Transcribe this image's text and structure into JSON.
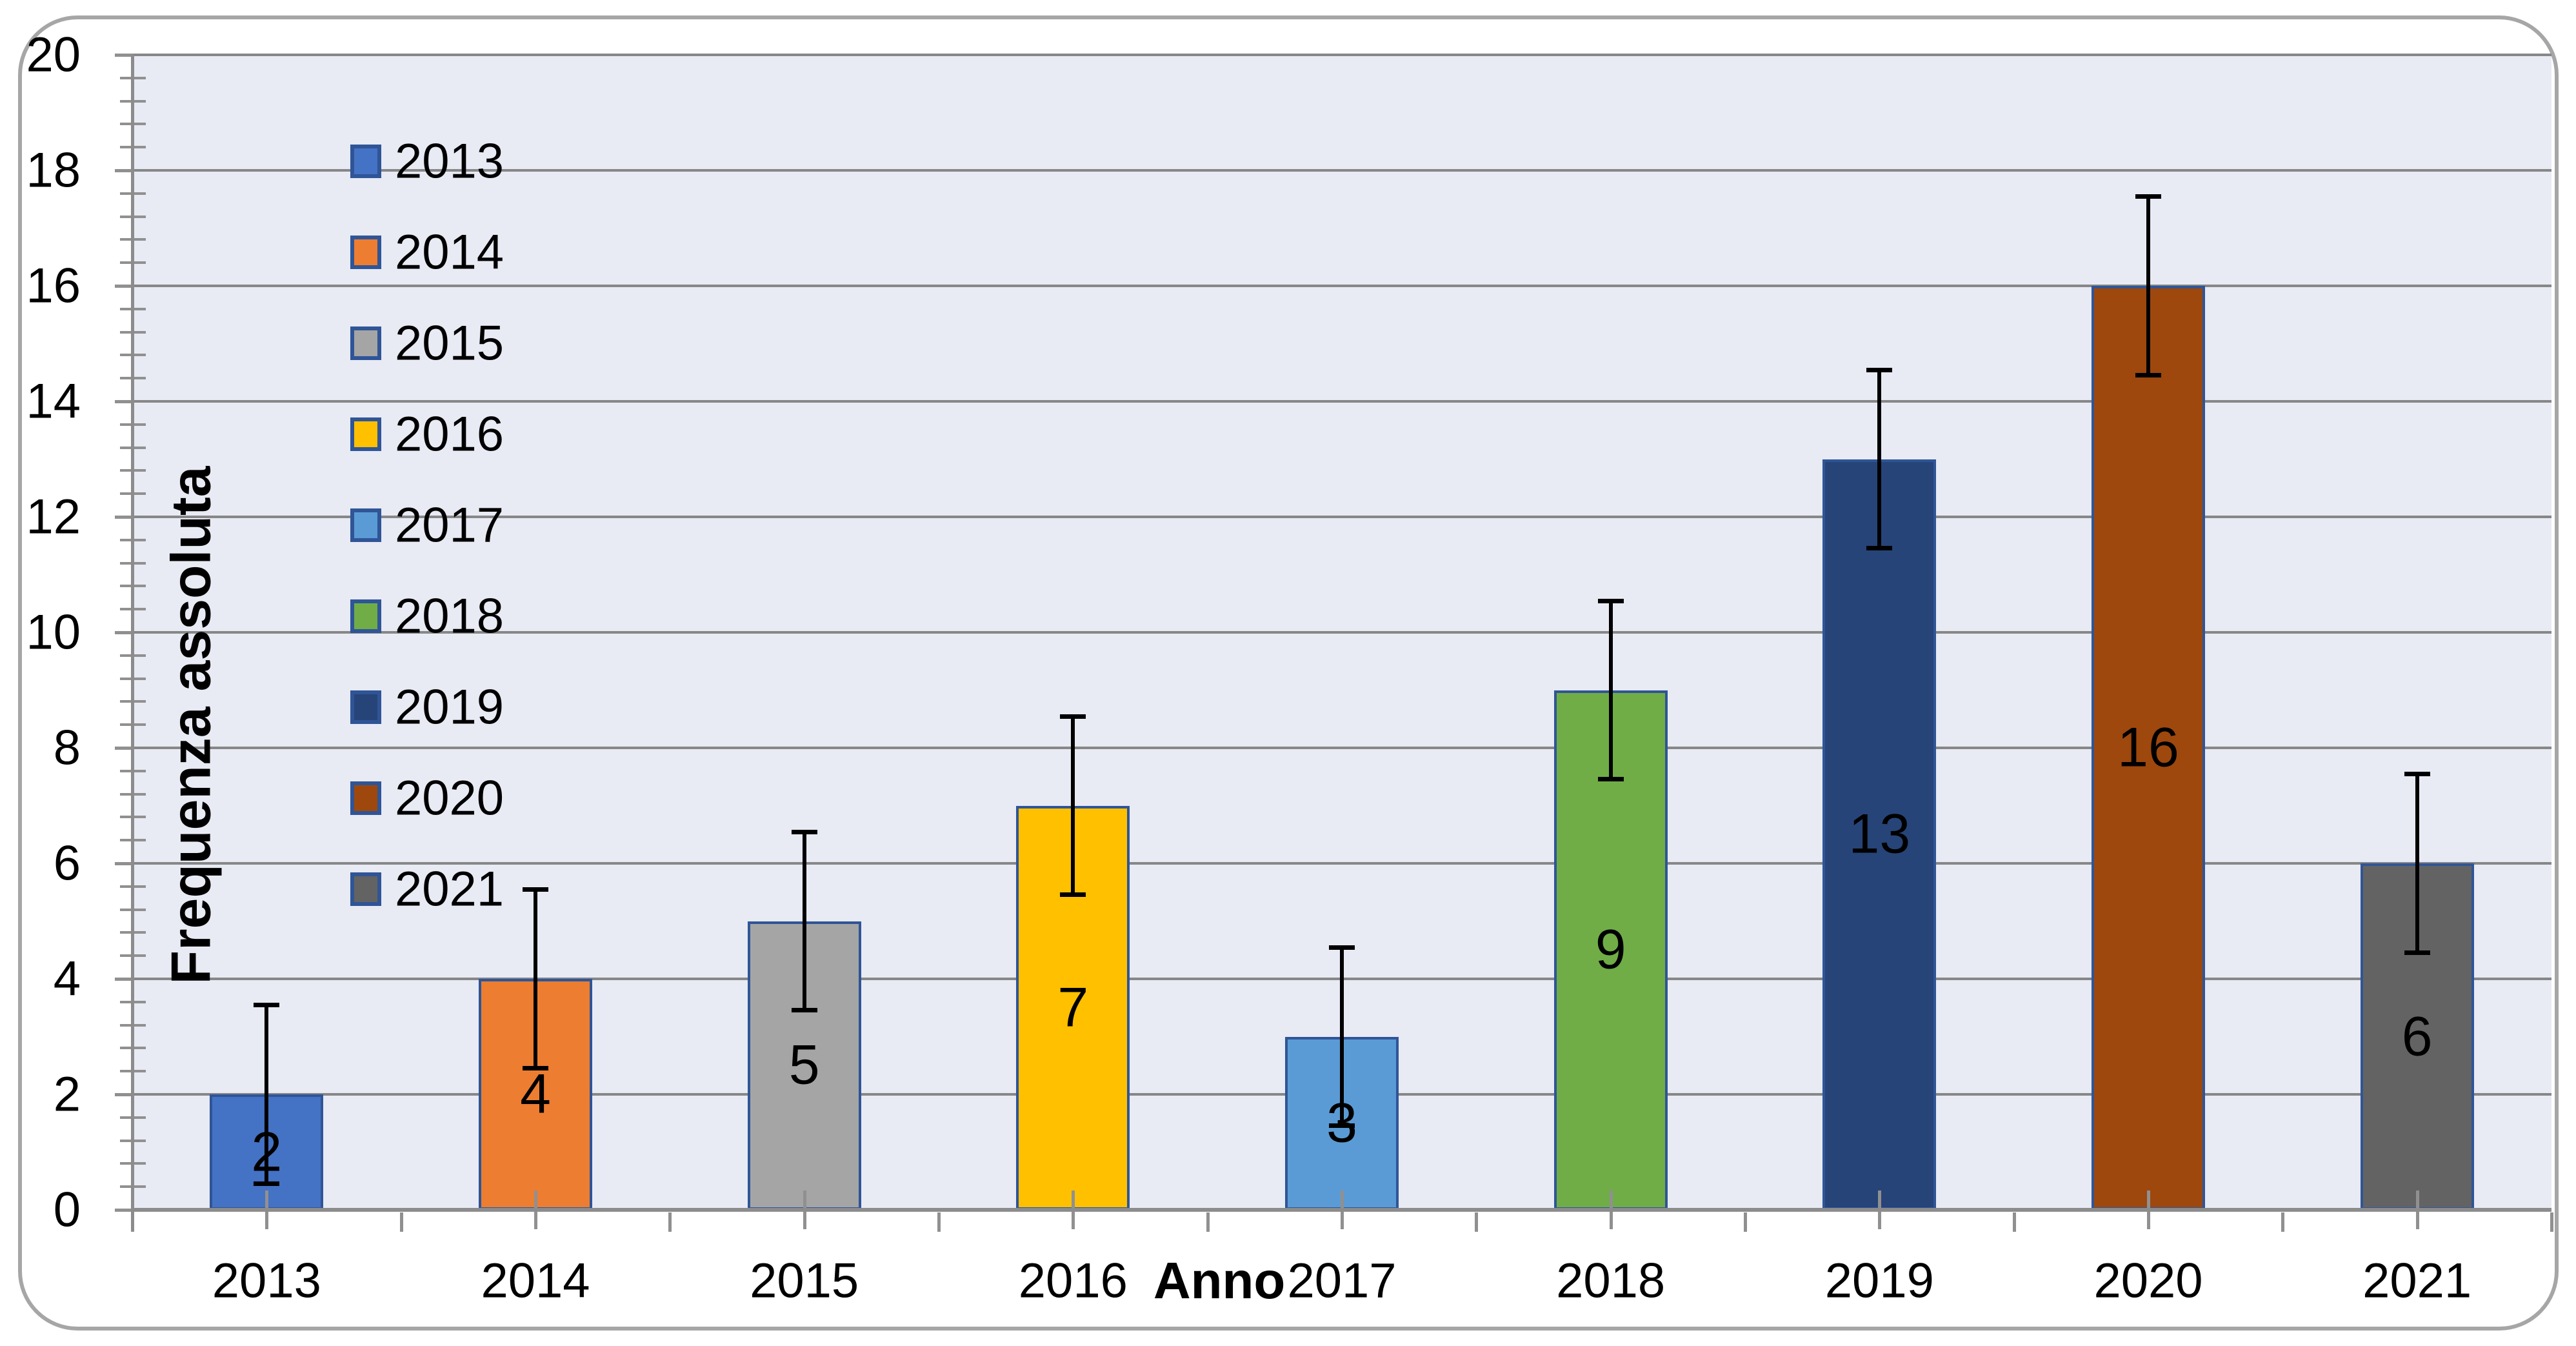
{
  "chart_data": {
    "type": "bar",
    "title": "",
    "xlabel": "Anno",
    "ylabel": "Frequenza assoluta",
    "categories": [
      "2013",
      "2014",
      "2015",
      "2016",
      "2017",
      "2018",
      "2019",
      "2020",
      "2021"
    ],
    "values": [
      2,
      4,
      5,
      7,
      3,
      9,
      13,
      16,
      6
    ],
    "data_labels": [
      "2",
      "4",
      "5",
      "7",
      "3",
      "9",
      "13",
      "16",
      "6"
    ],
    "errors": [
      1.55,
      1.55,
      1.55,
      1.55,
      1.55,
      1.55,
      1.55,
      1.55,
      1.55
    ],
    "bar_colors": [
      "#4472c4",
      "#ed7d31",
      "#a5a5a5",
      "#ffc000",
      "#5b9bd5",
      "#70ad47",
      "#264478",
      "#9e480e",
      "#636363"
    ],
    "bar_border_color": "#2f5597",
    "ylim": [
      0,
      20
    ],
    "y_major_step": 2,
    "y_minor_step": 0.4,
    "y_ticks": [
      "0",
      "2",
      "4",
      "6",
      "8",
      "10",
      "12",
      "14",
      "16",
      "18",
      "20"
    ],
    "grid": "horizontal-major-only",
    "legend": {
      "position": "inside-top-left",
      "entries": [
        "2013",
        "2014",
        "2015",
        "2016",
        "2017",
        "2018",
        "2019",
        "2020",
        "2021"
      ]
    },
    "error_bars": {
      "half_width": 1.55,
      "color": "#000000",
      "style": "both-directions-with-caps"
    },
    "colors": {
      "chart_background": "#ffffff",
      "plot_background": "#e8eaf4",
      "gridline": "#878787",
      "axis": "#8c8c8c",
      "chart_border": "#a6a6a6",
      "text": "#000000"
    }
  }
}
